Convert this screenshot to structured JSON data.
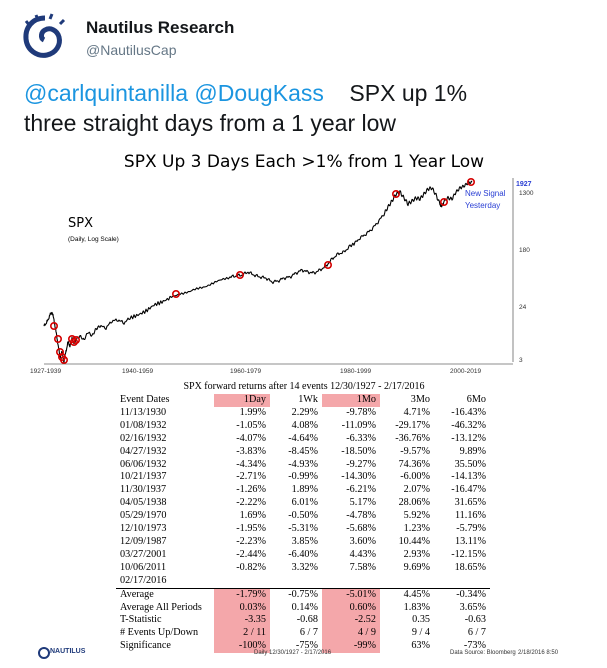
{
  "tweet": {
    "author_name": "Nautilus Research",
    "author_handle": "@NautilusCap",
    "mention1": "@carlquintanilla",
    "mention2": "@DougKass",
    "text_part1": "SPX up 1%",
    "text_part2": "three straight days from a 1 year low"
  },
  "figure": {
    "title": "SPX Up 3 Days Each >1% from 1 Year Low",
    "footer_logo": "NAUTILUS",
    "footer_daily": "Daily     12/30/1927 - 2/17/2016",
    "footer_source": "Data Source: Bloomberg",
    "footer_stamp": "2/18/2016 8:50"
  },
  "chart_data": {
    "type": "line",
    "series_label": "SPX",
    "series_sublabel": "(Daily, Log Scale)",
    "scale": "log",
    "y_ticks": [
      "1927",
      "1300",
      "180",
      "24",
      "3"
    ],
    "x_ticks": [
      "1927-1939",
      "1940-1959",
      "1960-1979",
      "1980-1999",
      "2000-2019"
    ],
    "annotation": [
      "New Signal",
      "Yesterday"
    ],
    "accent_color": "#d40000",
    "annotation_color": "#2a3fd4",
    "signal_dates": [
      "11/13/1930",
      "01/08/1932",
      "02/16/1932",
      "04/27/1932",
      "06/06/1932",
      "10/21/1937",
      "11/30/1937",
      "04/05/1938",
      "05/29/1970",
      "12/10/1973",
      "12/09/1987",
      "03/27/2001",
      "10/06/2011",
      "02/17/2016"
    ]
  },
  "returns": {
    "title": "SPX forward returns after 14 events 12/30/1927 - 2/17/2016",
    "headers": [
      "Event Dates",
      "1Day",
      "1Wk",
      "1Mo",
      "3Mo",
      "6Mo"
    ],
    "rows": [
      [
        "11/13/1930",
        "1.99%",
        "2.29%",
        "-9.78%",
        "4.71%",
        "-16.43%"
      ],
      [
        "01/08/1932",
        "-1.05%",
        "4.08%",
        "-11.09%",
        "-29.17%",
        "-46.32%"
      ],
      [
        "02/16/1932",
        "-4.07%",
        "-4.64%",
        "-6.33%",
        "-36.76%",
        "-13.12%"
      ],
      [
        "04/27/1932",
        "-3.83%",
        "-8.45%",
        "-18.50%",
        "-9.57%",
        "9.89%"
      ],
      [
        "06/06/1932",
        "-4.34%",
        "-4.93%",
        "-9.27%",
        "74.36%",
        "35.50%"
      ],
      [
        "10/21/1937",
        "-2.71%",
        "-0.99%",
        "-14.30%",
        "-6.00%",
        "-14.13%"
      ],
      [
        "11/30/1937",
        "-1.26%",
        "1.89%",
        "-6.21%",
        "2.07%",
        "-16.47%"
      ],
      [
        "04/05/1938",
        "-2.22%",
        "6.01%",
        "5.17%",
        "28.06%",
        "31.65%"
      ],
      [
        "05/29/1970",
        "1.69%",
        "-0.50%",
        "-4.78%",
        "5.92%",
        "11.16%"
      ],
      [
        "12/10/1973",
        "-1.95%",
        "-5.31%",
        "-5.68%",
        "1.23%",
        "-5.79%"
      ],
      [
        "12/09/1987",
        "-2.23%",
        "3.85%",
        "3.60%",
        "10.44%",
        "13.11%"
      ],
      [
        "03/27/2001",
        "-2.44%",
        "-6.40%",
        "4.43%",
        "2.93%",
        "-12.15%"
      ],
      [
        "10/06/2011",
        "-0.82%",
        "3.32%",
        "7.58%",
        "9.69%",
        "18.65%"
      ],
      [
        "02/17/2016",
        "",
        "",
        "",
        "",
        ""
      ]
    ],
    "summary": [
      [
        "Average",
        "-1.79%",
        "-0.75%",
        "-5.01%",
        "4.45%",
        "-0.34%"
      ],
      [
        "Average All Periods",
        "0.03%",
        "0.14%",
        "0.60%",
        "1.83%",
        "3.65%"
      ],
      [
        "T-Statistic",
        "-3.35",
        "-0.68",
        "-2.52",
        "0.35",
        "-0.63"
      ],
      [
        "# Events Up/Down",
        "2 / 11",
        "6 / 7",
        "4 / 9",
        "9 / 4",
        "6 / 7"
      ],
      [
        "Significance",
        "-100%",
        "-75%",
        "-99%",
        "63%",
        "-73%"
      ]
    ]
  }
}
